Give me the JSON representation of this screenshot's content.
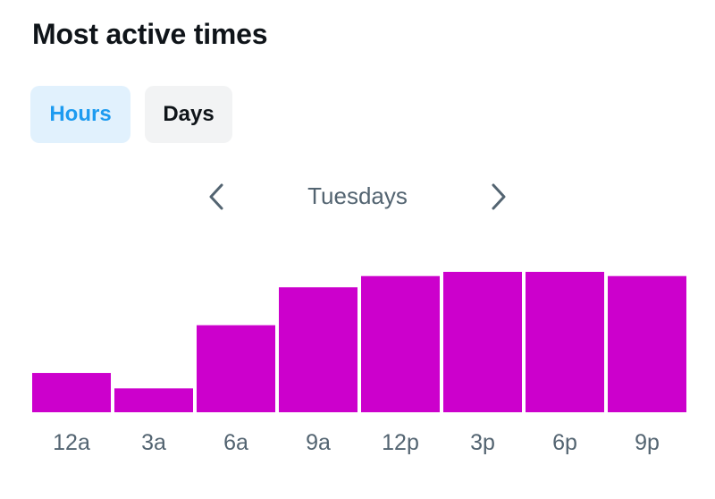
{
  "header": {
    "title": "Most active times"
  },
  "tabs": [
    {
      "label": "Hours",
      "active": true
    },
    {
      "label": "Days",
      "active": false
    }
  ],
  "day_nav": {
    "label": "Tuesdays",
    "prev_icon": "chevron-left-icon",
    "next_icon": "chevron-right-icon"
  },
  "colors": {
    "bar": "#cc00cc",
    "accent": "#1d9bf0"
  },
  "chart_data": {
    "type": "bar",
    "categories": [
      "12a",
      "3a",
      "6a",
      "9a",
      "12p",
      "3p",
      "6p",
      "9p"
    ],
    "values": [
      28,
      17,
      62,
      89,
      97,
      100,
      100,
      97
    ],
    "ylim": [
      0,
      100
    ],
    "grid": false
  }
}
